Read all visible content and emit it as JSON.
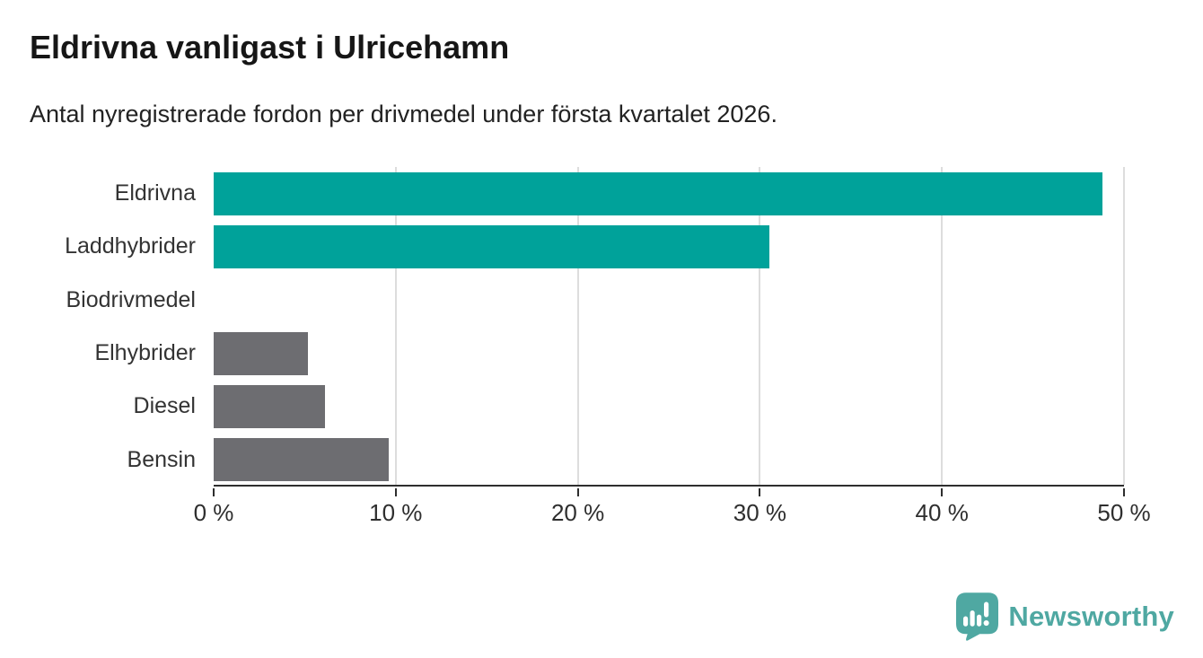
{
  "header": {
    "title": "Eldrivna vanligast i Ulricehamn",
    "subtitle": "Antal nyregistrerade fordon per drivmedel under första kvartalet 2026."
  },
  "chart_data": {
    "type": "bar",
    "orientation": "horizontal",
    "title": "Eldrivna vanligast i Ulricehamn",
    "subtitle": "Antal nyregistrerade fordon per drivmedel under första kvartalet 2026.",
    "categories": [
      "Eldrivna",
      "Laddhybrider",
      "Biodrivmedel",
      "Elhybrider",
      "Diesel",
      "Bensin"
    ],
    "values": [
      48.8,
      30.5,
      0,
      5.2,
      6.1,
      9.6
    ],
    "unit": "%",
    "xlim": [
      0,
      50
    ],
    "x_ticks": [
      0,
      10,
      20,
      30,
      40,
      50
    ],
    "x_tick_labels": [
      "0 %",
      "10 %",
      "20 %",
      "30 %",
      "40 %",
      "50 %"
    ],
    "grid": "vertical-only",
    "legend": "none",
    "bar_colors": [
      "#00A29A",
      "#00A29A",
      "#6D6D71",
      "#6D6D71",
      "#6D6D71",
      "#6D6D71"
    ],
    "highlight_color": "#00A29A",
    "default_color": "#6D6D71",
    "gridline_color": "#dddddd",
    "axis_color": "#2e2e2e"
  },
  "footer": {
    "brand": "Newsworthy",
    "brand_color": "#4FA8A2",
    "logo_icon": "speech-bubble-bar-chart-exclamation"
  }
}
